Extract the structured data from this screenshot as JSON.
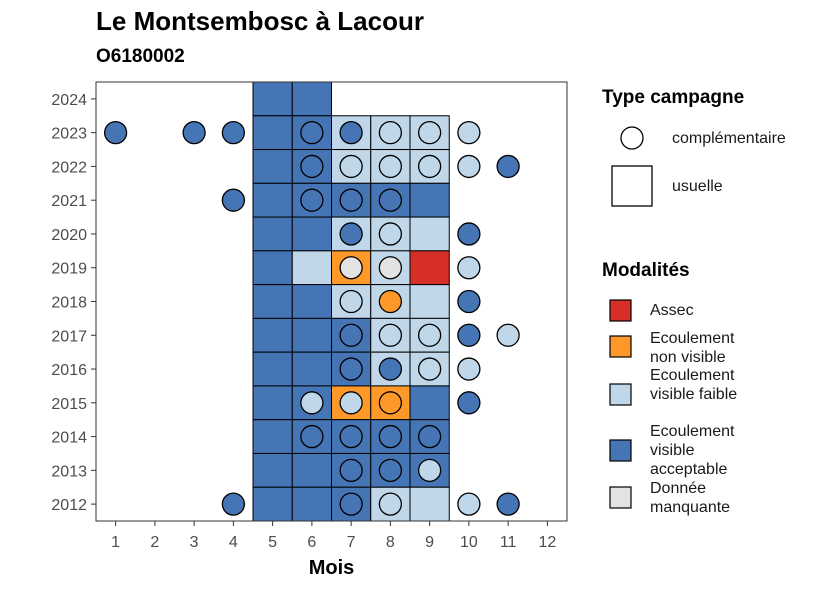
{
  "chart_data": {
    "type": "heatmap",
    "title": "Le Montsembosc à Lacour",
    "subtitle": "O6180002",
    "xlabel": "Mois",
    "ylabel": "",
    "x_ticks": [
      1,
      2,
      3,
      4,
      5,
      6,
      7,
      8,
      9,
      10,
      11,
      12
    ],
    "years": [
      2012,
      2013,
      2014,
      2015,
      2016,
      2017,
      2018,
      2019,
      2020,
      2021,
      2022,
      2023,
      2024
    ],
    "xlim": [
      0.5,
      12.5
    ],
    "ylim": [
      2011.5,
      2024.5
    ],
    "colors": {
      "assec": "#d62f27",
      "non_visible": "#fe9929",
      "faible": "#bfd7e8",
      "acceptable": "#4575b4",
      "manquante": "#e3e3e3"
    },
    "modalites_legend": {
      "title": "Modalités",
      "items": [
        {
          "key": "assec",
          "label": "Assec"
        },
        {
          "key": "non_visible",
          "label": "Ecoulement non visible"
        },
        {
          "key": "faible",
          "label": "Ecoulement visible faible"
        },
        {
          "key": "acceptable",
          "label": "Ecoulement visible acceptable"
        },
        {
          "key": "manquante",
          "label": "Donnée manquante"
        }
      ]
    },
    "type_legend": {
      "title": "Type campagne",
      "items": [
        {
          "shape": "circle",
          "label": "complémentaire"
        },
        {
          "shape": "square",
          "label": "usuelle"
        }
      ]
    },
    "usuelle": [
      {
        "year": 2024,
        "month": 5,
        "mod": "acceptable"
      },
      {
        "year": 2024,
        "month": 6,
        "mod": "acceptable"
      },
      {
        "year": 2023,
        "month": 5,
        "mod": "acceptable"
      },
      {
        "year": 2023,
        "month": 6,
        "mod": "acceptable"
      },
      {
        "year": 2023,
        "month": 7,
        "mod": "faible"
      },
      {
        "year": 2023,
        "month": 8,
        "mod": "faible"
      },
      {
        "year": 2023,
        "month": 9,
        "mod": "faible"
      },
      {
        "year": 2022,
        "month": 5,
        "mod": "acceptable"
      },
      {
        "year": 2022,
        "month": 6,
        "mod": "acceptable"
      },
      {
        "year": 2022,
        "month": 7,
        "mod": "faible"
      },
      {
        "year": 2022,
        "month": 8,
        "mod": "faible"
      },
      {
        "year": 2022,
        "month": 9,
        "mod": "faible"
      },
      {
        "year": 2021,
        "month": 5,
        "mod": "acceptable"
      },
      {
        "year": 2021,
        "month": 6,
        "mod": "acceptable"
      },
      {
        "year": 2021,
        "month": 7,
        "mod": "acceptable"
      },
      {
        "year": 2021,
        "month": 8,
        "mod": "acceptable"
      },
      {
        "year": 2021,
        "month": 9,
        "mod": "acceptable"
      },
      {
        "year": 2020,
        "month": 5,
        "mod": "acceptable"
      },
      {
        "year": 2020,
        "month": 6,
        "mod": "acceptable"
      },
      {
        "year": 2020,
        "month": 7,
        "mod": "faible"
      },
      {
        "year": 2020,
        "month": 8,
        "mod": "faible"
      },
      {
        "year": 2020,
        "month": 9,
        "mod": "faible"
      },
      {
        "year": 2019,
        "month": 5,
        "mod": "acceptable"
      },
      {
        "year": 2019,
        "month": 6,
        "mod": "faible"
      },
      {
        "year": 2019,
        "month": 7,
        "mod": "non_visible"
      },
      {
        "year": 2019,
        "month": 8,
        "mod": "faible"
      },
      {
        "year": 2019,
        "month": 9,
        "mod": "assec"
      },
      {
        "year": 2018,
        "month": 5,
        "mod": "acceptable"
      },
      {
        "year": 2018,
        "month": 6,
        "mod": "acceptable"
      },
      {
        "year": 2018,
        "month": 7,
        "mod": "faible"
      },
      {
        "year": 2018,
        "month": 8,
        "mod": "faible"
      },
      {
        "year": 2018,
        "month": 9,
        "mod": "faible"
      },
      {
        "year": 2017,
        "month": 5,
        "mod": "acceptable"
      },
      {
        "year": 2017,
        "month": 6,
        "mod": "acceptable"
      },
      {
        "year": 2017,
        "month": 7,
        "mod": "acceptable"
      },
      {
        "year": 2017,
        "month": 8,
        "mod": "faible"
      },
      {
        "year": 2017,
        "month": 9,
        "mod": "faible"
      },
      {
        "year": 2016,
        "month": 5,
        "mod": "acceptable"
      },
      {
        "year": 2016,
        "month": 6,
        "mod": "acceptable"
      },
      {
        "year": 2016,
        "month": 7,
        "mod": "acceptable"
      },
      {
        "year": 2016,
        "month": 8,
        "mod": "faible"
      },
      {
        "year": 2016,
        "month": 9,
        "mod": "faible"
      },
      {
        "year": 2015,
        "month": 5,
        "mod": "acceptable"
      },
      {
        "year": 2015,
        "month": 6,
        "mod": "acceptable"
      },
      {
        "year": 2015,
        "month": 7,
        "mod": "non_visible"
      },
      {
        "year": 2015,
        "month": 8,
        "mod": "non_visible"
      },
      {
        "year": 2015,
        "month": 9,
        "mod": "acceptable"
      },
      {
        "year": 2014,
        "month": 5,
        "mod": "acceptable"
      },
      {
        "year": 2014,
        "month": 6,
        "mod": "acceptable"
      },
      {
        "year": 2014,
        "month": 7,
        "mod": "acceptable"
      },
      {
        "year": 2014,
        "month": 8,
        "mod": "acceptable"
      },
      {
        "year": 2014,
        "month": 9,
        "mod": "acceptable"
      },
      {
        "year": 2013,
        "month": 5,
        "mod": "acceptable"
      },
      {
        "year": 2013,
        "month": 6,
        "mod": "acceptable"
      },
      {
        "year": 2013,
        "month": 7,
        "mod": "acceptable"
      },
      {
        "year": 2013,
        "month": 8,
        "mod": "acceptable"
      },
      {
        "year": 2013,
        "month": 9,
        "mod": "acceptable"
      },
      {
        "year": 2012,
        "month": 5,
        "mod": "acceptable"
      },
      {
        "year": 2012,
        "month": 6,
        "mod": "acceptable"
      },
      {
        "year": 2012,
        "month": 7,
        "mod": "acceptable"
      },
      {
        "year": 2012,
        "month": 8,
        "mod": "faible"
      },
      {
        "year": 2012,
        "month": 9,
        "mod": "faible"
      }
    ],
    "complementaire": [
      {
        "year": 2023,
        "month": 1,
        "mod": "acceptable"
      },
      {
        "year": 2023,
        "month": 3,
        "mod": "acceptable"
      },
      {
        "year": 2023,
        "month": 4,
        "mod": "acceptable"
      },
      {
        "year": 2023,
        "month": 6,
        "mod": "acceptable"
      },
      {
        "year": 2023,
        "month": 7,
        "mod": "acceptable"
      },
      {
        "year": 2023,
        "month": 8,
        "mod": "faible"
      },
      {
        "year": 2023,
        "month": 9,
        "mod": "faible"
      },
      {
        "year": 2023,
        "month": 10,
        "mod": "faible"
      },
      {
        "year": 2022,
        "month": 6,
        "mod": "acceptable"
      },
      {
        "year": 2022,
        "month": 7,
        "mod": "faible"
      },
      {
        "year": 2022,
        "month": 8,
        "mod": "faible"
      },
      {
        "year": 2022,
        "month": 9,
        "mod": "faible"
      },
      {
        "year": 2022,
        "month": 10,
        "mod": "faible"
      },
      {
        "year": 2022,
        "month": 11,
        "mod": "acceptable"
      },
      {
        "year": 2021,
        "month": 4,
        "mod": "acceptable"
      },
      {
        "year": 2021,
        "month": 6,
        "mod": "acceptable"
      },
      {
        "year": 2021,
        "month": 7,
        "mod": "acceptable"
      },
      {
        "year": 2021,
        "month": 8,
        "mod": "acceptable"
      },
      {
        "year": 2020,
        "month": 7,
        "mod": "acceptable"
      },
      {
        "year": 2020,
        "month": 8,
        "mod": "faible"
      },
      {
        "year": 2020,
        "month": 10,
        "mod": "acceptable"
      },
      {
        "year": 2019,
        "month": 7,
        "mod": "manquante"
      },
      {
        "year": 2019,
        "month": 8,
        "mod": "manquante"
      },
      {
        "year": 2019,
        "month": 10,
        "mod": "faible"
      },
      {
        "year": 2018,
        "month": 7,
        "mod": "faible"
      },
      {
        "year": 2018,
        "month": 8,
        "mod": "non_visible"
      },
      {
        "year": 2018,
        "month": 10,
        "mod": "acceptable"
      },
      {
        "year": 2017,
        "month": 7,
        "mod": "acceptable"
      },
      {
        "year": 2017,
        "month": 8,
        "mod": "faible"
      },
      {
        "year": 2017,
        "month": 9,
        "mod": "faible"
      },
      {
        "year": 2017,
        "month": 10,
        "mod": "acceptable"
      },
      {
        "year": 2017,
        "month": 11,
        "mod": "faible"
      },
      {
        "year": 2016,
        "month": 7,
        "mod": "acceptable"
      },
      {
        "year": 2016,
        "month": 8,
        "mod": "acceptable"
      },
      {
        "year": 2016,
        "month": 9,
        "mod": "faible"
      },
      {
        "year": 2016,
        "month": 10,
        "mod": "faible"
      },
      {
        "year": 2015,
        "month": 6,
        "mod": "faible"
      },
      {
        "year": 2015,
        "month": 7,
        "mod": "faible"
      },
      {
        "year": 2015,
        "month": 8,
        "mod": "non_visible"
      },
      {
        "year": 2015,
        "month": 10,
        "mod": "acceptable"
      },
      {
        "year": 2014,
        "month": 6,
        "mod": "acceptable"
      },
      {
        "year": 2014,
        "month": 7,
        "mod": "acceptable"
      },
      {
        "year": 2014,
        "month": 8,
        "mod": "acceptable"
      },
      {
        "year": 2014,
        "month": 9,
        "mod": "acceptable"
      },
      {
        "year": 2013,
        "month": 7,
        "mod": "acceptable"
      },
      {
        "year": 2013,
        "month": 8,
        "mod": "acceptable"
      },
      {
        "year": 2013,
        "month": 9,
        "mod": "faible"
      },
      {
        "year": 2012,
        "month": 4,
        "mod": "acceptable"
      },
      {
        "year": 2012,
        "month": 7,
        "mod": "acceptable"
      },
      {
        "year": 2012,
        "month": 8,
        "mod": "faible"
      },
      {
        "year": 2012,
        "month": 10,
        "mod": "faible"
      },
      {
        "year": 2012,
        "month": 11,
        "mod": "acceptable"
      }
    ]
  }
}
